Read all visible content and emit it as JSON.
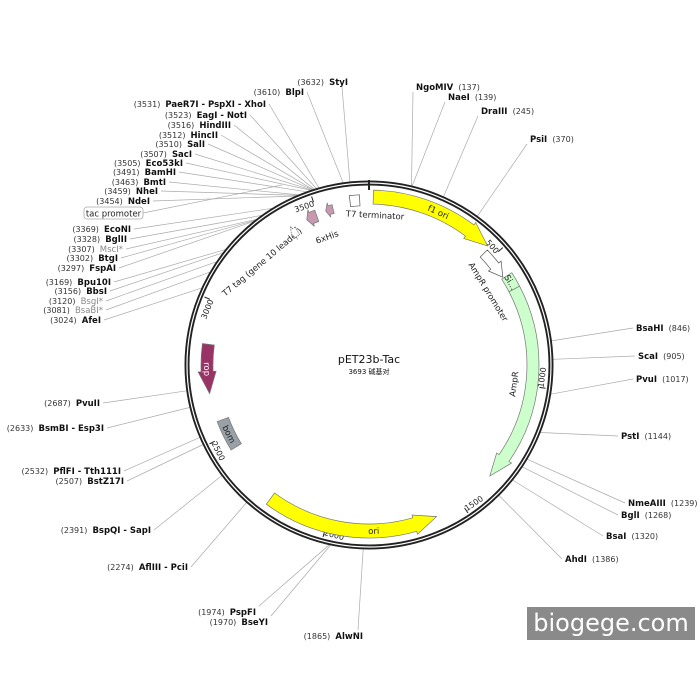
{
  "plasmid": {
    "name": "pET23b-Tac",
    "length_text": "3693 碱基对",
    "length_bp": 3693
  },
  "features": [
    {
      "label": "f1 ori",
      "from": 15,
      "to": 460,
      "color": "#ffff00",
      "arrow": true
    },
    {
      "label": "AmpR promoter",
      "from": 470,
      "to": 582,
      "color": "#ffffff",
      "arrow": true
    },
    {
      "label": "Si...",
      "from": 586,
      "to": 640,
      "color": "#ccffcc",
      "arrow": false
    },
    {
      "label": "AmpR",
      "from": 640,
      "to": 1360,
      "color": "#ccffcc",
      "arrow": true
    },
    {
      "label": "ori",
      "from": 2220,
      "to": 1600,
      "color": "#ffff00",
      "arrow": true
    },
    {
      "label": "bom",
      "from": 2445,
      "to": 2560,
      "color": "#99a0a8",
      "arrow": false
    },
    {
      "label": "rop",
      "from": 2845,
      "to": 2665,
      "color": "#993366",
      "arrow": true
    },
    {
      "label": "T7 terminator",
      "from": 3625,
      "to": 3660,
      "color": "#ffffff",
      "arrow": false
    },
    {
      "label": "6xHis",
      "from": 3560,
      "to": 3532,
      "color": "#c897b0",
      "arrow": true
    },
    {
      "label": "T7 tag (gene 10 leader)",
      "from": 3495,
      "to": 3455,
      "color": "#c897b0",
      "arrow": true
    },
    {
      "label": "",
      "from": 3405,
      "to": 3378,
      "color": "#ffffff",
      "arrow": true
    }
  ],
  "ticks": [
    "500",
    "1000",
    "1500",
    "2000",
    "2500",
    "3000",
    "3500"
  ],
  "tick_positions": [
    500,
    1000,
    1500,
    2000,
    2500,
    3000,
    3500
  ],
  "sites": [
    {
      "name": "StyI",
      "pos": 3632,
      "pos_text": "(3632)"
    },
    {
      "name": "BlpI",
      "pos": 3610,
      "pos_text": "(3610)"
    },
    {
      "name": "PaeR7I - PspXI - XhoI",
      "pos": 3531,
      "pos_text": "(3531)"
    },
    {
      "name": "EagI - NotI",
      "pos": 3523,
      "pos_text": "(3523)"
    },
    {
      "name": "HindIII",
      "pos": 3516,
      "pos_text": "(3516)"
    },
    {
      "name": "HincII",
      "pos": 3512,
      "pos_text": "(3512)"
    },
    {
      "name": "SalI",
      "pos": 3510,
      "pos_text": "(3510)"
    },
    {
      "name": "SacI",
      "pos": 3507,
      "pos_text": "(3507)"
    },
    {
      "name": "Eco53kI",
      "pos": 3505,
      "pos_text": "(3505)"
    },
    {
      "name": "BamHI",
      "pos": 3491,
      "pos_text": "(3491)"
    },
    {
      "name": "BmtI",
      "pos": 3463,
      "pos_text": "(3463)"
    },
    {
      "name": "NheI",
      "pos": 3459,
      "pos_text": "(3459)"
    },
    {
      "name": "NdeI",
      "pos": 3454,
      "pos_text": "(3454)"
    },
    {
      "name": "EcoNI",
      "pos": 3369,
      "pos_text": "(3369)"
    },
    {
      "name": "BglII",
      "pos": 3328,
      "pos_text": "(3328)"
    },
    {
      "name": "MscI*",
      "pos": 3307,
      "pos_text": "(3307)",
      "grey": true
    },
    {
      "name": "BtgI",
      "pos": 3302,
      "pos_text": "(3302)"
    },
    {
      "name": "FspAI",
      "pos": 3297,
      "pos_text": "(3297)"
    },
    {
      "name": "Bpu10I",
      "pos": 3169,
      "pos_text": "(3169)"
    },
    {
      "name": "BbsI",
      "pos": 3156,
      "pos_text": "(3156)"
    },
    {
      "name": "BsgI*",
      "pos": 3120,
      "pos_text": "(3120)",
      "grey": true
    },
    {
      "name": "BsaBI*",
      "pos": 3081,
      "pos_text": "(3081)",
      "grey": true
    },
    {
      "name": "AfeI",
      "pos": 3024,
      "pos_text": "(3024)"
    },
    {
      "name": "PvuII",
      "pos": 2687,
      "pos_text": "(2687)"
    },
    {
      "name": "BsmBI - Esp3I",
      "pos": 2633,
      "pos_text": "(2633)"
    },
    {
      "name": "PflFI - Tth111I",
      "pos": 2532,
      "pos_text": "(2532)"
    },
    {
      "name": "BstZ17I",
      "pos": 2507,
      "pos_text": "(2507)"
    },
    {
      "name": "BspQI - SapI",
      "pos": 2391,
      "pos_text": "(2391)"
    },
    {
      "name": "AflIII - PciI",
      "pos": 2274,
      "pos_text": "(2274)"
    },
    {
      "name": "PspFI",
      "pos": 1974,
      "pos_text": "(1974)"
    },
    {
      "name": "BseYI",
      "pos": 1970,
      "pos_text": "(1970)"
    },
    {
      "name": "AlwNI",
      "pos": 1865,
      "pos_text": "(1865)"
    },
    {
      "name": "NgoMIV",
      "pos": 137,
      "pos_text": "(137)"
    },
    {
      "name": "NaeI",
      "pos": 139,
      "pos_text": "(139)"
    },
    {
      "name": "DraIII",
      "pos": 245,
      "pos_text": "(245)"
    },
    {
      "name": "PsiI",
      "pos": 370,
      "pos_text": "(370)"
    },
    {
      "name": "BsaHI",
      "pos": 846,
      "pos_text": "(846)"
    },
    {
      "name": "ScaI",
      "pos": 905,
      "pos_text": "(905)"
    },
    {
      "name": "PvuI",
      "pos": 1017,
      "pos_text": "(1017)"
    },
    {
      "name": "PstI",
      "pos": 1144,
      "pos_text": "(1144)"
    },
    {
      "name": "NmeAIII",
      "pos": 1239,
      "pos_text": "(1239)"
    },
    {
      "name": "BglI",
      "pos": 1268,
      "pos_text": "(1268)"
    },
    {
      "name": "BsaI",
      "pos": 1320,
      "pos_text": "(1320)"
    },
    {
      "name": "AhdI",
      "pos": 1386,
      "pos_text": "(1386)"
    }
  ],
  "tac_promoter_label": "tac promoter",
  "watermark": "biogege.com"
}
